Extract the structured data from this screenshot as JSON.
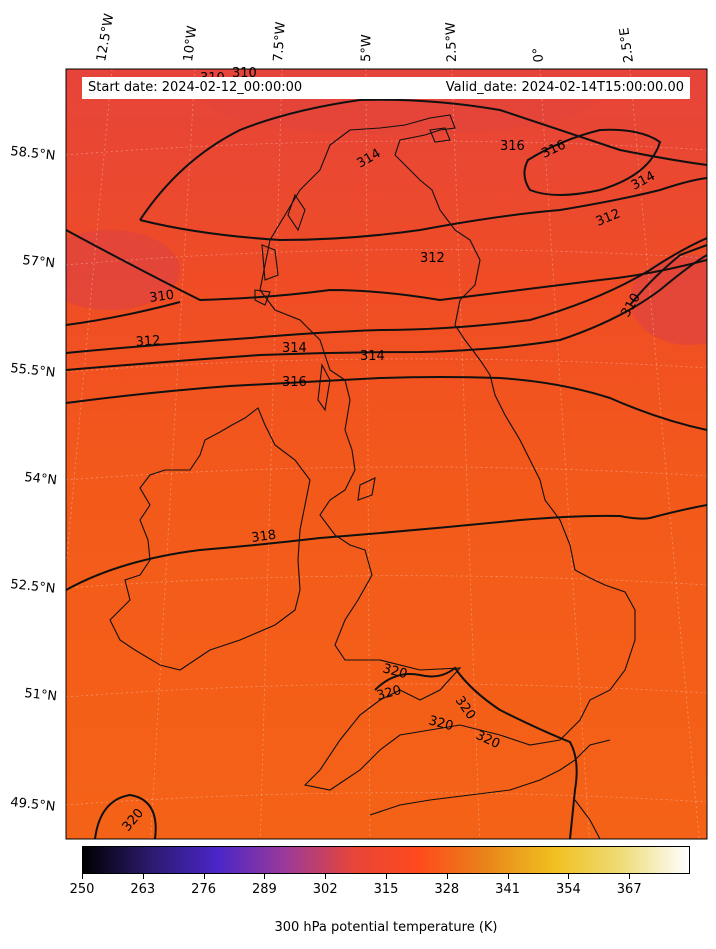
{
  "header": {
    "start_date": "Start date: 2024-02-12_00:00:00",
    "valid_date": "Valid_date: 2024-02-14T15:00:00.00"
  },
  "longitude_labels": [
    "12.5°W",
    "10°W",
    "7.5°W",
    "5°W",
    "2.5°W",
    "0°",
    "2.5°E"
  ],
  "latitude_labels": [
    "58.5°N",
    "57°N",
    "55.5°N",
    "54°N",
    "52.5°N",
    "51°N",
    "49.5°N"
  ],
  "contour_labels": [
    "310",
    "310",
    "312",
    "314",
    "316",
    "316",
    "314",
    "312",
    "310",
    "310",
    "312",
    "314",
    "314",
    "316",
    "318",
    "320",
    "320",
    "320",
    "320",
    "320",
    "320"
  ],
  "colorbar": {
    "title": "300 hPa potential temperature (K)",
    "ticks": [
      "250",
      "263",
      "276",
      "289",
      "302",
      "315",
      "328",
      "341",
      "354",
      "367"
    ],
    "colormap": [
      "#000000",
      "#2c1a6e",
      "#4a26c8",
      "#9a3a9a",
      "#e6453a",
      "#ff4a1c",
      "#e8861a",
      "#f0c020",
      "#eedc78",
      "#ffffff"
    ]
  },
  "field_colors": {
    "cool": "#e04438",
    "mid": "#f24e22",
    "warm": "#f45f18"
  }
}
